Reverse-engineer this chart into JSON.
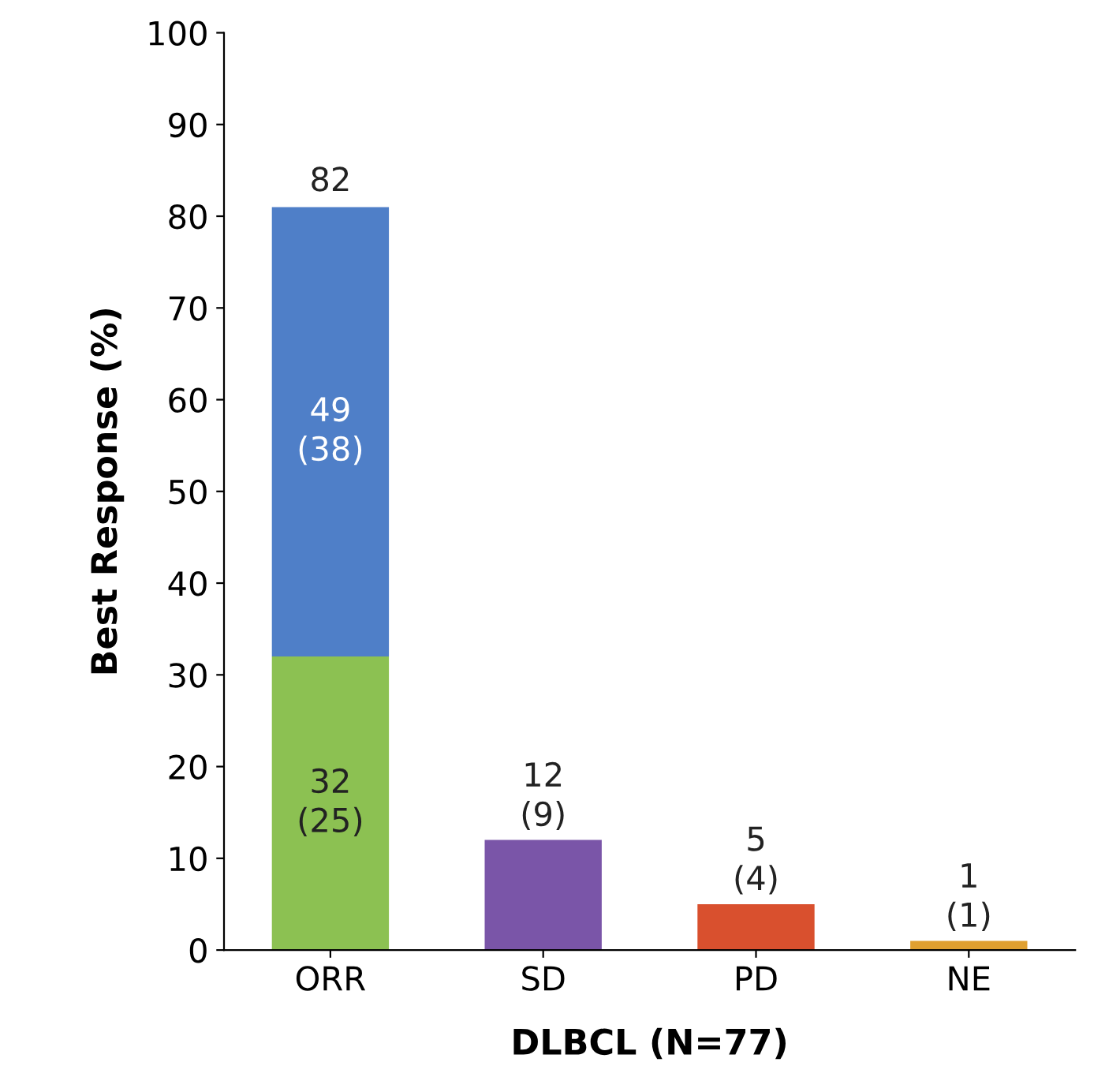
{
  "chart_data": {
    "type": "bar",
    "stacked": true,
    "xlabel": "DLBCL (N=77)",
    "ylabel": "Best Response (%)",
    "categories": [
      "ORR",
      "SD",
      "PD",
      "NE"
    ],
    "series": [
      {
        "colors": [
          "#8cc152",
          "#7a55a8",
          "#d9502e",
          "#e0a030"
        ],
        "values": [
          32,
          12,
          5,
          1
        ],
        "value_labels": [
          "32\n(25)",
          "12\n(9)",
          "5\n(4)",
          "1\n(1)"
        ]
      },
      {
        "colors": [
          "#4f7fc8",
          "#4f7fc8",
          "#4f7fc8",
          "#4f7fc8"
        ],
        "values": [
          49,
          null,
          null,
          null
        ],
        "value_labels": [
          "49\n(38)",
          null,
          null,
          null
        ]
      }
    ],
    "totals": [
      "82",
      null,
      null,
      null
    ],
    "ylim": [
      0,
      100
    ],
    "yticks": [
      0,
      10,
      20,
      30,
      40,
      50,
      60,
      70,
      80,
      90,
      100
    ],
    "grid": false
  }
}
